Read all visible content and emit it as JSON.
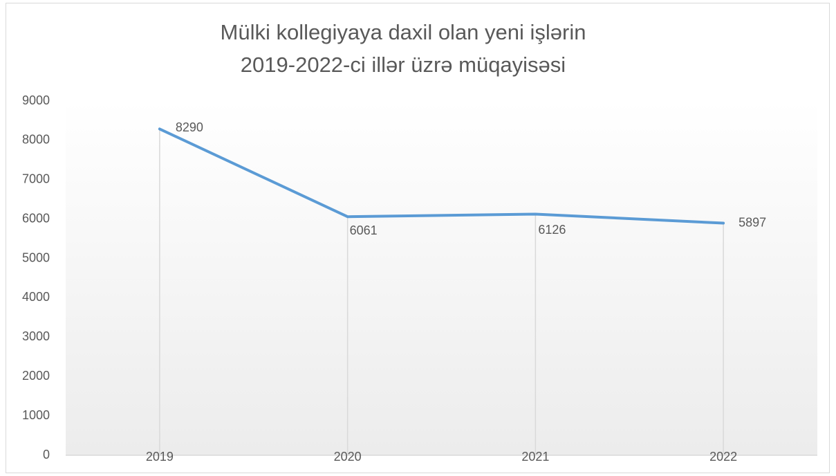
{
  "chart_data": {
    "type": "line",
    "title": [
      "Mülki kollegiyaya daxil olan yeni işlərin",
      "2019-2022-ci illər üzrə müqayisəsi"
    ],
    "categories": [
      "2019",
      "2020",
      "2021",
      "2022"
    ],
    "series": [
      {
        "values": [
          8290,
          6061,
          6126,
          5897
        ],
        "color": "#5b9bd5"
      }
    ],
    "ylim": [
      0,
      9000
    ],
    "yticks": [
      0,
      1000,
      2000,
      3000,
      4000,
      5000,
      6000,
      7000,
      8000,
      9000
    ],
    "drop_lines": true
  }
}
